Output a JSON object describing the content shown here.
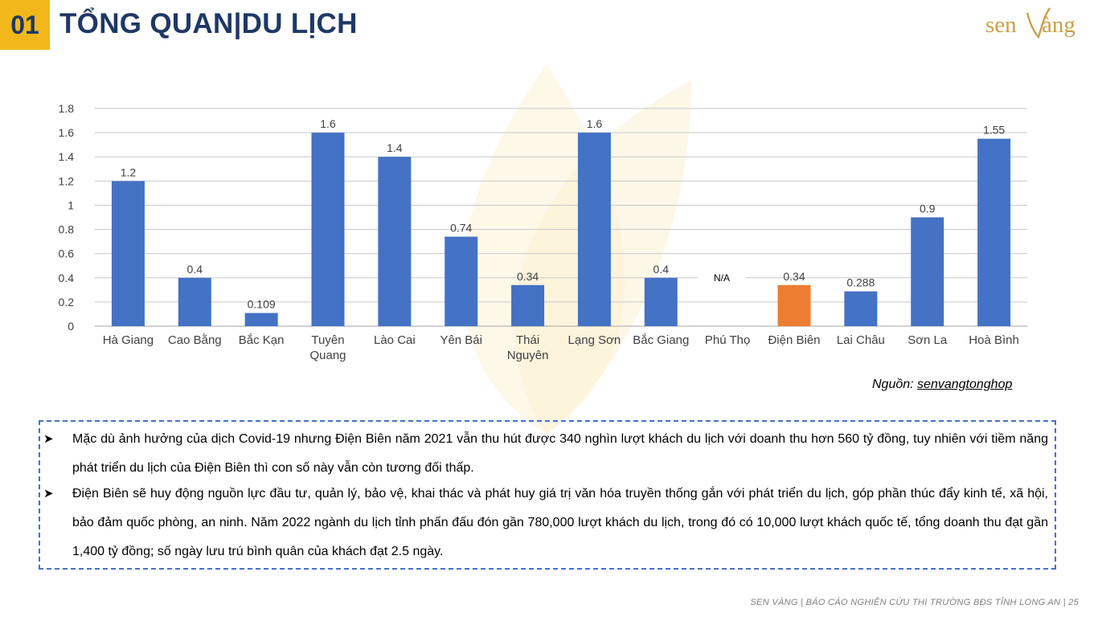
{
  "header": {
    "slide_number": "01",
    "title": "TỔNG QUAN|DU LỊCH",
    "logo_text": "sen vàng"
  },
  "chart_data": {
    "type": "bar",
    "categories": [
      "Hà Giang",
      "Cao Bằng",
      "Bắc Kạn",
      "Tuyên Quang",
      "Lào Cai",
      "Yên Bái",
      "Thái Nguyên",
      "Lạng Sơn",
      "Bắc Giang",
      "Phú Thọ",
      "Điện Biên",
      "Lai Châu",
      "Sơn La",
      "Hoà Bình"
    ],
    "values": [
      1.2,
      0.4,
      0.109,
      1.6,
      1.4,
      0.74,
      0.34,
      1.6,
      0.4,
      null,
      0.34,
      0.288,
      0.9,
      1.55
    ],
    "data_labels": [
      "1.2",
      "0.4",
      "0.109",
      "1.6",
      "1.4",
      "0.74",
      "0.34",
      "1.6",
      "0.4",
      "N/A",
      "0.34",
      "0.288",
      "0.9",
      "1.55"
    ],
    "highlight_category": "Điện Biên",
    "colors": {
      "default": "#4472c4",
      "highlight": "#ed7d31"
    },
    "y_ticks": [
      "0",
      "0.2",
      "0.4",
      "0.6",
      "0.8",
      "1",
      "1.2",
      "1.4",
      "1.6",
      "1.8"
    ],
    "ylim": [
      0,
      1.8
    ],
    "grid": true,
    "title": "",
    "xlabel": "",
    "ylabel": ""
  },
  "source": {
    "label": "Nguồn:",
    "name": "senvangtonghop"
  },
  "notes": [
    "Mặc dù ảnh hưởng của dịch Covid-19 nhưng Điện Biên năm 2021 vẫn thu hút được 340 nghìn lượt khách du lịch với doanh thu hơn 560 tỷ đồng, tuy nhiên với tiềm năng phát triển du lịch của Điện Biên thì con số này vẫn còn tương đối thấp.",
    "Điện Biên sẽ huy động nguồn lực đầu tư, quản lý, bảo vệ, khai thác và phát huy giá trị văn hóa truyền thống gắn với phát triển du lịch, góp phần thúc đẩy kinh tế, xã hội, bảo đảm quốc phòng, an ninh. Năm 2022 ngành du lịch tỉnh phấn đấu đón gần 780,000 lượt khách du lịch, trong đó có 10,000 lượt khách quốc tế, tổng doanh thu đạt gần 1,400 tỷ đồng; số ngày lưu trú bình quân của khách đạt 2.5 ngày."
  ],
  "bullet_icon": "arrowhead-bullet-icon",
  "footer": "SEN VÀNG | BÁO CÁO NGHIÊN CỨU THỊ TRƯỜNG BĐS TỈNH LONG AN | 25"
}
